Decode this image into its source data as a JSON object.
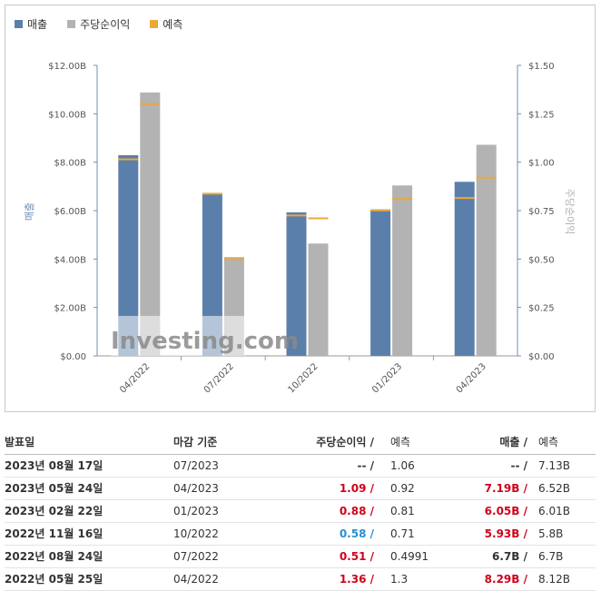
{
  "legend": {
    "revenue": "매출",
    "eps": "주당순이익",
    "forecast": "예측"
  },
  "colors": {
    "revenue": "#5b7fab",
    "eps": "#b3b3b3",
    "forecast": "#e8a93a",
    "axis": "#6f8fb5"
  },
  "watermark": "Investing.com",
  "chart_data": {
    "type": "bar",
    "categories": [
      "04/2022",
      "07/2022",
      "10/2022",
      "01/2023",
      "04/2023"
    ],
    "series": [
      {
        "name": "매출",
        "axis": "left",
        "values": [
          8.29,
          6.7,
          5.93,
          6.05,
          7.19
        ],
        "forecast": [
          8.12,
          6.7,
          5.8,
          6.01,
          6.52
        ]
      },
      {
        "name": "주당순이익",
        "axis": "right",
        "values": [
          1.36,
          0.51,
          0.58,
          0.88,
          1.09
        ],
        "forecast": [
          1.3,
          0.4991,
          0.71,
          0.81,
          0.92
        ]
      }
    ],
    "ylabel_left": "매출",
    "ylabel_right": "주당순이익",
    "ylim_left": [
      0,
      12
    ],
    "ylim_right": [
      0,
      1.5
    ],
    "yticks_left": [
      "$0.00",
      "$2.00B",
      "$4.00B",
      "$6.00B",
      "$8.00B",
      "$10.00B",
      "$12.00B"
    ],
    "yticks_right": [
      "$0.00",
      "$0.25",
      "$0.50",
      "$0.75",
      "$1.00",
      "$1.25",
      "$1.50"
    ],
    "legend_position": "top-left"
  },
  "table": {
    "headers": {
      "date": "발표일",
      "period": "마감 기준",
      "eps": "주당순이익 /",
      "eps_forecast": "예측",
      "revenue": "매출 /",
      "revenue_forecast": "예측"
    },
    "rows": [
      {
        "date": "2023년 08월 17일",
        "period": "07/2023",
        "eps": "-- /",
        "eps_color": "neutral",
        "eps_forecast": "1.06",
        "revenue": "-- /",
        "revenue_color": "neutral",
        "revenue_forecast": "7.13B"
      },
      {
        "date": "2023년 05월 24일",
        "period": "04/2023",
        "eps": "1.09 /",
        "eps_color": "red",
        "eps_forecast": "0.92",
        "revenue": "7.19B /",
        "revenue_color": "red",
        "revenue_forecast": "6.52B"
      },
      {
        "date": "2023년 02월 22일",
        "period": "01/2023",
        "eps": "0.88 /",
        "eps_color": "red",
        "eps_forecast": "0.81",
        "revenue": "6.05B /",
        "revenue_color": "red",
        "revenue_forecast": "6.01B"
      },
      {
        "date": "2022년 11월 16일",
        "period": "10/2022",
        "eps": "0.58 /",
        "eps_color": "blue",
        "eps_forecast": "0.71",
        "revenue": "5.93B /",
        "revenue_color": "red",
        "revenue_forecast": "5.8B"
      },
      {
        "date": "2022년 08월 24일",
        "period": "07/2022",
        "eps": "0.51 /",
        "eps_color": "red",
        "eps_forecast": "0.4991",
        "revenue": "6.7B /",
        "revenue_color": "neutral",
        "revenue_forecast": "6.7B"
      },
      {
        "date": "2022년 05월 25일",
        "period": "04/2022",
        "eps": "1.36 /",
        "eps_color": "red",
        "eps_forecast": "1.3",
        "revenue": "8.29B /",
        "revenue_color": "red",
        "revenue_forecast": "8.12B"
      }
    ]
  }
}
